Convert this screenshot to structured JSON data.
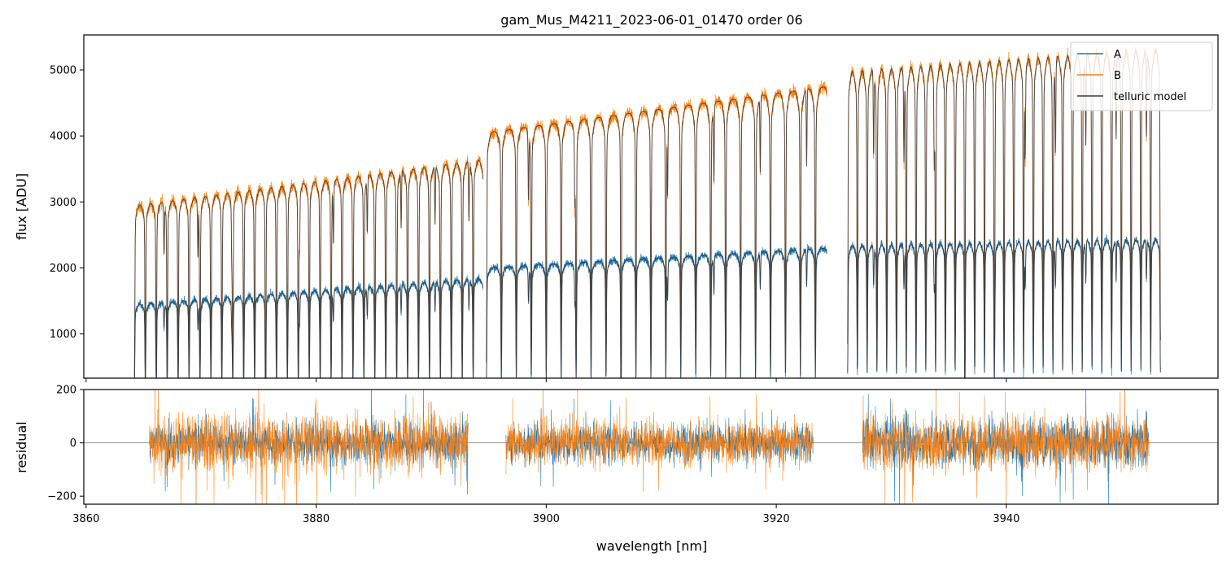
{
  "chart_data": [
    {
      "type": "line",
      "panel": "flux",
      "title": "gam_Mus_M4211_2023-06-01_01470  order 06",
      "xlabel": "",
      "ylabel": "flux [ADU]",
      "xlim": [
        3859.8,
        3958.4
      ],
      "ylim": [
        330,
        5530
      ],
      "yticks": [
        1000,
        2000,
        3000,
        4000,
        5000
      ],
      "legend_position": "top-right",
      "segments": [
        {
          "x_start": 3864.2,
          "x_end": 3894.5,
          "cont_A": [
            1450,
            1850
          ],
          "cont_B": [
            2950,
            3650
          ],
          "line_spacing": 0.95,
          "line_depth": 0.8
        },
        {
          "x_start": 3894.8,
          "x_end": 3924.4,
          "cont_A": [
            2000,
            2300
          ],
          "cont_B": [
            4050,
            4750
          ],
          "line_spacing": 1.3,
          "line_depth": 0.78
        },
        {
          "x_start": 3926.2,
          "x_end": 3953.4,
          "cont_A": [
            2350,
            2450
          ],
          "cont_B": [
            5000,
            5350
          ],
          "line_spacing": 0.85,
          "line_depth": 0.75
        }
      ],
      "series": [
        {
          "name": "A",
          "color": "#1f77b4"
        },
        {
          "name": "B",
          "color": "#ff7f0e"
        },
        {
          "name": "telluric model",
          "color": "#3a3a3a"
        }
      ]
    },
    {
      "type": "line",
      "panel": "residual",
      "xlabel": "wavelength [nm]",
      "ylabel": "residual",
      "xlim": [
        3859.8,
        3958.4
      ],
      "ylim": [
        -230,
        200
      ],
      "yticks": [
        -200,
        0,
        200
      ],
      "xticks": [
        3860,
        3880,
        3900,
        3920,
        3940
      ],
      "segments": [
        {
          "x_start": 3865.5,
          "x_end": 3893.2,
          "noise_A": 55,
          "noise_B": 80
        },
        {
          "x_start": 3896.5,
          "x_end": 3923.2,
          "noise_A": 50,
          "noise_B": 60
        },
        {
          "x_start": 3927.5,
          "x_end": 3952.4,
          "noise_A": 65,
          "noise_B": 70
        }
      ],
      "series": [
        {
          "name": "A",
          "color": "#1f77b4"
        },
        {
          "name": "B",
          "color": "#ff7f0e"
        }
      ]
    }
  ]
}
